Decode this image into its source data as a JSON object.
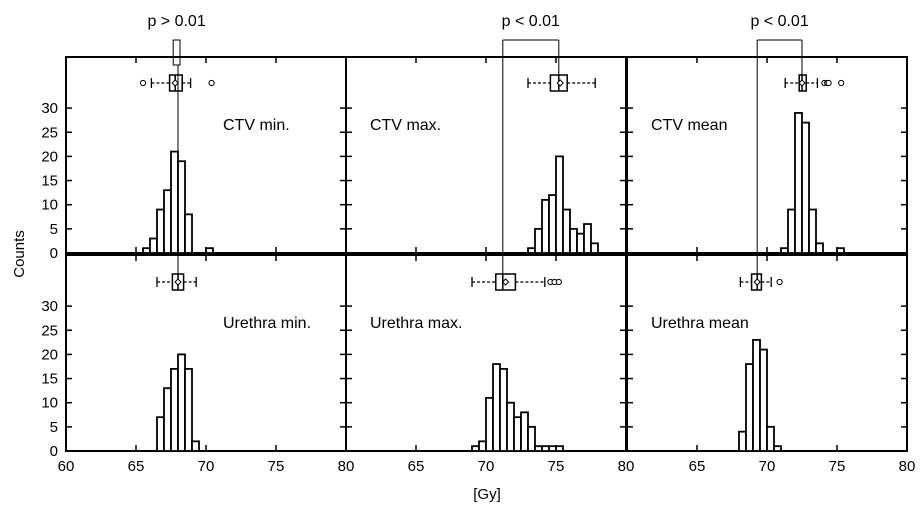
{
  "chart_data": {
    "type": "histogram-grid",
    "xlabel": "[Gy]",
    "ylabel": "Counts",
    "xlim": [
      60,
      80
    ],
    "ylim": [
      0,
      30
    ],
    "xticks": [
      60,
      65,
      70,
      75,
      80
    ],
    "yticks": [
      0,
      5,
      10,
      15,
      20,
      25,
      30
    ],
    "bin_width": 0.5,
    "comparisons": [
      {
        "label": "p > 0.01",
        "column": 0,
        "top_x": 67.8,
        "bottom_x": 68.0
      },
      {
        "label": "p < 0.01",
        "column": 1,
        "top_x": 75.2,
        "bottom_x": 71.2
      },
      {
        "label": "p < 0.01",
        "column": 2,
        "top_x": 72.5,
        "bottom_x": 69.3
      }
    ],
    "panels": [
      {
        "label": "CTV min.",
        "row": 0,
        "column": 0,
        "bins": [
          {
            "x": 65.5,
            "count": 1
          },
          {
            "x": 66.0,
            "count": 3
          },
          {
            "x": 66.5,
            "count": 9
          },
          {
            "x": 67.0,
            "count": 13
          },
          {
            "x": 67.5,
            "count": 21
          },
          {
            "x": 68.0,
            "count": 19
          },
          {
            "x": 68.5,
            "count": 8
          },
          {
            "x": 70.0,
            "count": 1
          }
        ],
        "boxplot": {
          "whisker_low": 66.1,
          "q1": 67.4,
          "median": 67.8,
          "mean": 67.8,
          "q3": 68.3,
          "whisker_high": 68.9,
          "outliers": [
            65.5,
            70.4
          ]
        }
      },
      {
        "label": "CTV max.",
        "row": 0,
        "column": 1,
        "bins": [
          {
            "x": 73.0,
            "count": 1
          },
          {
            "x": 73.5,
            "count": 5
          },
          {
            "x": 74.0,
            "count": 11
          },
          {
            "x": 74.5,
            "count": 12
          },
          {
            "x": 75.0,
            "count": 20
          },
          {
            "x": 75.5,
            "count": 9
          },
          {
            "x": 76.0,
            "count": 5
          },
          {
            "x": 76.5,
            "count": 4
          },
          {
            "x": 77.0,
            "count": 6
          },
          {
            "x": 77.5,
            "count": 2
          }
        ],
        "boxplot": {
          "whisker_low": 73.0,
          "q1": 74.6,
          "median": 75.2,
          "mean": 75.3,
          "q3": 75.8,
          "whisker_high": 77.8,
          "outliers": []
        }
      },
      {
        "label": "CTV mean",
        "row": 0,
        "column": 2,
        "bins": [
          {
            "x": 71.0,
            "count": 1
          },
          {
            "x": 71.5,
            "count": 9
          },
          {
            "x": 72.0,
            "count": 29
          },
          {
            "x": 72.5,
            "count": 27
          },
          {
            "x": 73.0,
            "count": 9
          },
          {
            "x": 73.5,
            "count": 2
          },
          {
            "x": 75.0,
            "count": 1
          }
        ],
        "boxplot": {
          "whisker_low": 71.3,
          "q1": 72.3,
          "median": 72.5,
          "mean": 72.5,
          "q3": 72.8,
          "whisker_high": 73.6,
          "outliers": [
            74.1,
            74.3,
            74.4,
            75.3
          ]
        }
      },
      {
        "label": "Urethra min.",
        "row": 1,
        "column": 0,
        "bins": [
          {
            "x": 66.5,
            "count": 7
          },
          {
            "x": 67.0,
            "count": 13
          },
          {
            "x": 67.5,
            "count": 17
          },
          {
            "x": 68.0,
            "count": 20
          },
          {
            "x": 68.5,
            "count": 17
          },
          {
            "x": 69.0,
            "count": 2
          }
        ],
        "boxplot": {
          "whisker_low": 66.5,
          "q1": 67.6,
          "median": 68.0,
          "mean": 68.0,
          "q3": 68.4,
          "whisker_high": 69.3,
          "outliers": []
        }
      },
      {
        "label": "Urethra max.",
        "row": 1,
        "column": 1,
        "bins": [
          {
            "x": 69.0,
            "count": 1
          },
          {
            "x": 69.5,
            "count": 2
          },
          {
            "x": 70.0,
            "count": 11
          },
          {
            "x": 70.5,
            "count": 18
          },
          {
            "x": 71.0,
            "count": 17
          },
          {
            "x": 71.5,
            "count": 10
          },
          {
            "x": 72.0,
            "count": 7
          },
          {
            "x": 72.5,
            "count": 8
          },
          {
            "x": 73.0,
            "count": 5
          },
          {
            "x": 73.5,
            "count": 1
          },
          {
            "x": 74.0,
            "count": 1
          },
          {
            "x": 74.5,
            "count": 1
          },
          {
            "x": 75.0,
            "count": 1
          }
        ],
        "boxplot": {
          "whisker_low": 69.0,
          "q1": 70.7,
          "median": 71.2,
          "mean": 71.4,
          "q3": 72.1,
          "whisker_high": 74.2,
          "outliers": [
            74.6,
            74.9,
            75.2
          ]
        }
      },
      {
        "label": "Urethra mean",
        "row": 1,
        "column": 2,
        "bins": [
          {
            "x": 68.0,
            "count": 4
          },
          {
            "x": 68.5,
            "count": 18
          },
          {
            "x": 69.0,
            "count": 23
          },
          {
            "x": 69.5,
            "count": 21
          },
          {
            "x": 70.0,
            "count": 5
          },
          {
            "x": 70.5,
            "count": 1
          }
        ],
        "boxplot": {
          "whisker_low": 68.1,
          "q1": 68.9,
          "median": 69.3,
          "mean": 69.3,
          "q3": 69.6,
          "whisker_high": 70.3,
          "outliers": [
            70.9
          ]
        }
      }
    ]
  }
}
